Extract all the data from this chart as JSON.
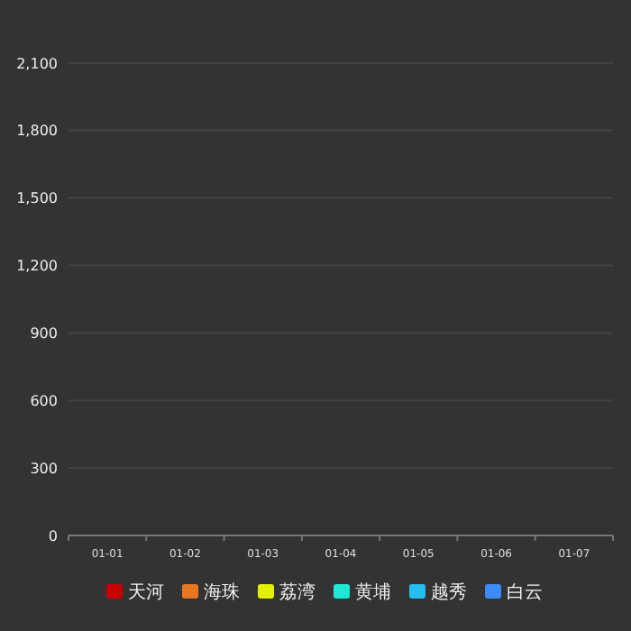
{
  "chart_data": {
    "type": "bar",
    "categories": [
      "01-01",
      "01-02",
      "01-03",
      "01-04",
      "01-05",
      "01-06",
      "01-07"
    ],
    "series": [
      {
        "name": "天河",
        "color": "#c80000",
        "values": [
          null,
          null,
          null,
          null,
          null,
          null,
          null
        ]
      },
      {
        "name": "海珠",
        "color": "#e87722",
        "values": [
          null,
          null,
          null,
          null,
          null,
          null,
          null
        ]
      },
      {
        "name": "荔湾",
        "color": "#e3f000",
        "values": [
          null,
          null,
          null,
          null,
          null,
          null,
          null
        ]
      },
      {
        "name": "黄埔",
        "color": "#1de9d6",
        "values": [
          null,
          null,
          null,
          null,
          null,
          null,
          null
        ]
      },
      {
        "name": "越秀",
        "color": "#26bdf0",
        "values": [
          null,
          null,
          null,
          null,
          null,
          null,
          null
        ]
      },
      {
        "name": "白云",
        "color": "#3d8bfa",
        "values": [
          null,
          null,
          null,
          null,
          null,
          null,
          null
        ]
      }
    ],
    "ylim": [
      0,
      2100
    ],
    "yticks": [
      0,
      300,
      600,
      900,
      {
        "value": 1200,
        "label": "1,200"
      },
      {
        "value": 1500,
        "label": "1,500"
      },
      {
        "value": 1800,
        "label": "1,800"
      },
      {
        "value": 2100,
        "label": "2,100"
      }
    ],
    "grid": "y",
    "legend": "bottom"
  }
}
